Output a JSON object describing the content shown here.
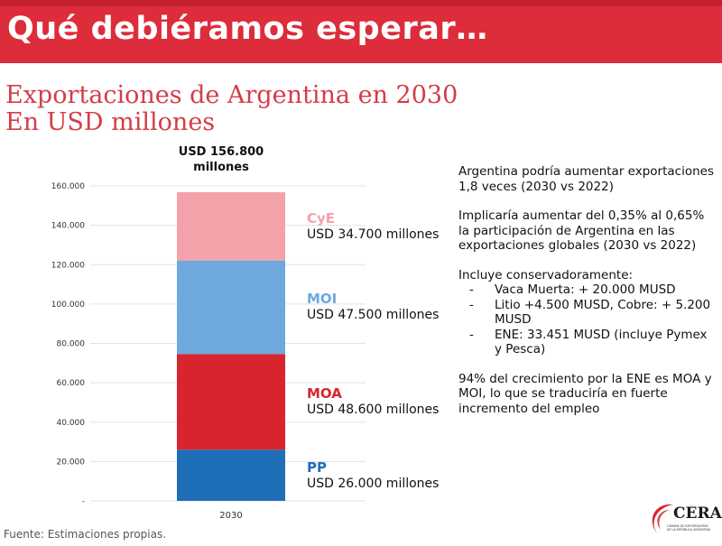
{
  "header": {
    "title": "Qué debiéramos esperar…"
  },
  "subtitle": {
    "line1": "Exportaciones de Argentina en 2030",
    "line2": "En USD millones"
  },
  "total_label": "USD 156.800\nmillones",
  "chart_data": {
    "type": "bar",
    "stacked": true,
    "categories": [
      "2030"
    ],
    "ylim": [
      0,
      160000
    ],
    "yticks": [
      0,
      20000,
      40000,
      60000,
      80000,
      100000,
      120000,
      140000,
      160000
    ],
    "ytick_labels": [
      "-",
      "20.000",
      "40.000",
      "60.000",
      "80.000",
      "100.000",
      "120.000",
      "140.000",
      "160.000"
    ],
    "grid": true,
    "series": [
      {
        "name": "PP",
        "values": [
          26000
        ],
        "color": "#1f6fb8",
        "label_value": "USD 26.000 millones"
      },
      {
        "name": "MOA",
        "values": [
          48600
        ],
        "color": "#d8242f",
        "label_value": "USD 48.600 millones"
      },
      {
        "name": "MOI",
        "values": [
          47500
        ],
        "color": "#6ea8dc",
        "label_value": "USD 47.500 millones"
      },
      {
        "name": "CyE",
        "values": [
          34700
        ],
        "color": "#f4a2aa",
        "label_value": "USD 34.700 millones"
      }
    ]
  },
  "notes": {
    "p1": "Argentina podría aumentar exportaciones 1,8 veces (2030 vs 2022)",
    "p2": "Implicaría aumentar del 0,35% al 0,65% la participación de Argentina en las exportaciones globales (2030 vs 2022)",
    "p3": "Incluye conservadoramente:",
    "bullets": [
      "Vaca Muerta: + 20.000 MUSD",
      "Litio +4.500  MUSD, Cobre: + 5.200 MUSD",
      "ENE: 33.451 MUSD (incluye Pymex y Pesca)"
    ],
    "p4": "94% del crecimiento por la ENE es MOA y MOI, lo que se traduciría en fuerte incremento del empleo"
  },
  "source": "Fuente: Estimaciones propias.",
  "logo": {
    "name": "CERA",
    "tagline_1": "CÁMARA DE EXPORTADORES",
    "tagline_2": "DE LA REPÚBLICA ARGENTINA",
    "color": "#d8242f"
  }
}
